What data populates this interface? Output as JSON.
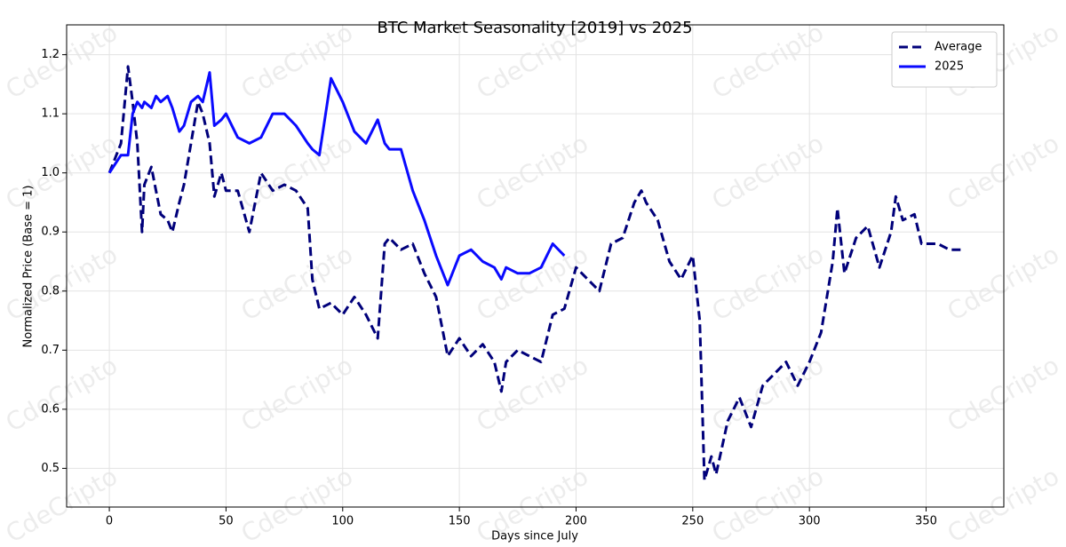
{
  "chart_data": {
    "type": "line",
    "title": "BTC Market Seasonality [2019] vs 2025",
    "x_label": "Days since July",
    "y_label": "Normalized Price (Base = 1)",
    "watermark": "CdeCripto",
    "x": [
      0,
      5,
      8,
      10,
      12,
      14,
      15,
      18,
      20,
      22,
      25,
      27,
      30,
      32,
      35,
      38,
      40,
      43,
      45,
      48,
      50,
      55,
      60,
      65,
      70,
      75,
      80,
      85,
      87,
      90,
      95,
      100,
      105,
      110,
      115,
      118,
      120,
      125,
      130,
      135,
      140,
      145,
      150,
      155,
      160,
      165,
      168,
      170,
      175,
      180,
      185,
      190,
      195,
      200,
      205,
      210,
      215,
      220,
      225,
      228,
      230,
      235,
      240,
      245,
      250,
      253,
      255,
      258,
      260,
      265,
      270,
      275,
      280,
      285,
      290,
      295,
      300,
      305,
      310,
      312,
      315,
      320,
      325,
      330,
      335,
      337,
      340,
      345,
      348,
      355,
      360,
      365
    ],
    "series": [
      {
        "name": "Average",
        "color": "#00007a",
        "dash": true,
        "values": [
          1.0,
          1.05,
          1.18,
          1.12,
          1.05,
          0.9,
          0.98,
          1.01,
          0.97,
          0.93,
          0.92,
          0.9,
          0.95,
          0.98,
          1.05,
          1.12,
          1.1,
          1.05,
          0.96,
          1.0,
          0.97,
          0.97,
          0.9,
          1.0,
          0.97,
          0.98,
          0.97,
          0.94,
          0.82,
          0.77,
          0.78,
          0.76,
          0.79,
          0.76,
          0.72,
          0.88,
          0.89,
          0.87,
          0.88,
          0.83,
          0.79,
          0.69,
          0.72,
          0.69,
          0.71,
          0.68,
          0.63,
          0.68,
          0.7,
          0.69,
          0.68,
          0.76,
          0.77,
          0.84,
          0.82,
          0.8,
          0.88,
          0.89,
          0.95,
          0.97,
          0.95,
          0.92,
          0.85,
          0.82,
          0.86,
          0.75,
          0.48,
          0.52,
          0.49,
          0.58,
          0.62,
          0.57,
          0.64,
          0.66,
          0.68,
          0.64,
          0.68,
          0.73,
          0.85,
          0.94,
          0.83,
          0.89,
          0.91,
          0.84,
          0.9,
          0.96,
          0.92,
          0.93,
          0.88,
          0.88,
          0.87,
          0.87
        ]
      },
      {
        "name": "2025",
        "color": "#0a0aff",
        "dash": false,
        "values": [
          1.0,
          1.03,
          1.03,
          1.1,
          1.12,
          1.11,
          1.12,
          1.11,
          1.13,
          1.12,
          1.13,
          1.11,
          1.07,
          1.08,
          1.12,
          1.13,
          1.12,
          1.17,
          1.08,
          1.09,
          1.1,
          1.06,
          1.05,
          1.06,
          1.1,
          1.1,
          1.08,
          1.05,
          1.04,
          1.03,
          1.16,
          1.12,
          1.07,
          1.05,
          1.09,
          1.05,
          1.04,
          1.04,
          0.97,
          0.92,
          0.86,
          0.81,
          0.86,
          0.87,
          0.85,
          0.84,
          0.82,
          0.84,
          0.83,
          0.83,
          0.84,
          0.88,
          0.86,
          null,
          null,
          null,
          null,
          null,
          null,
          null,
          null,
          null,
          null,
          null,
          null,
          null,
          null,
          null,
          null,
          null,
          null,
          null,
          null,
          null,
          null,
          null,
          null,
          null,
          null,
          null,
          null,
          null,
          null,
          null,
          null,
          null,
          null,
          null,
          null,
          null,
          null,
          null
        ]
      }
    ],
    "xlim": [
      -18.3,
      383.3
    ],
    "ylim": [
      0.4345,
      1.2505
    ],
    "xticks": [
      0,
      50,
      100,
      150,
      200,
      250,
      300,
      350
    ],
    "yticks": [
      0.5,
      0.6,
      0.7,
      0.8,
      0.9,
      {
        "value": 1,
        "label": "1.0"
      },
      1.1,
      1.2
    ],
    "grid": true,
    "legend": "upper-right"
  }
}
